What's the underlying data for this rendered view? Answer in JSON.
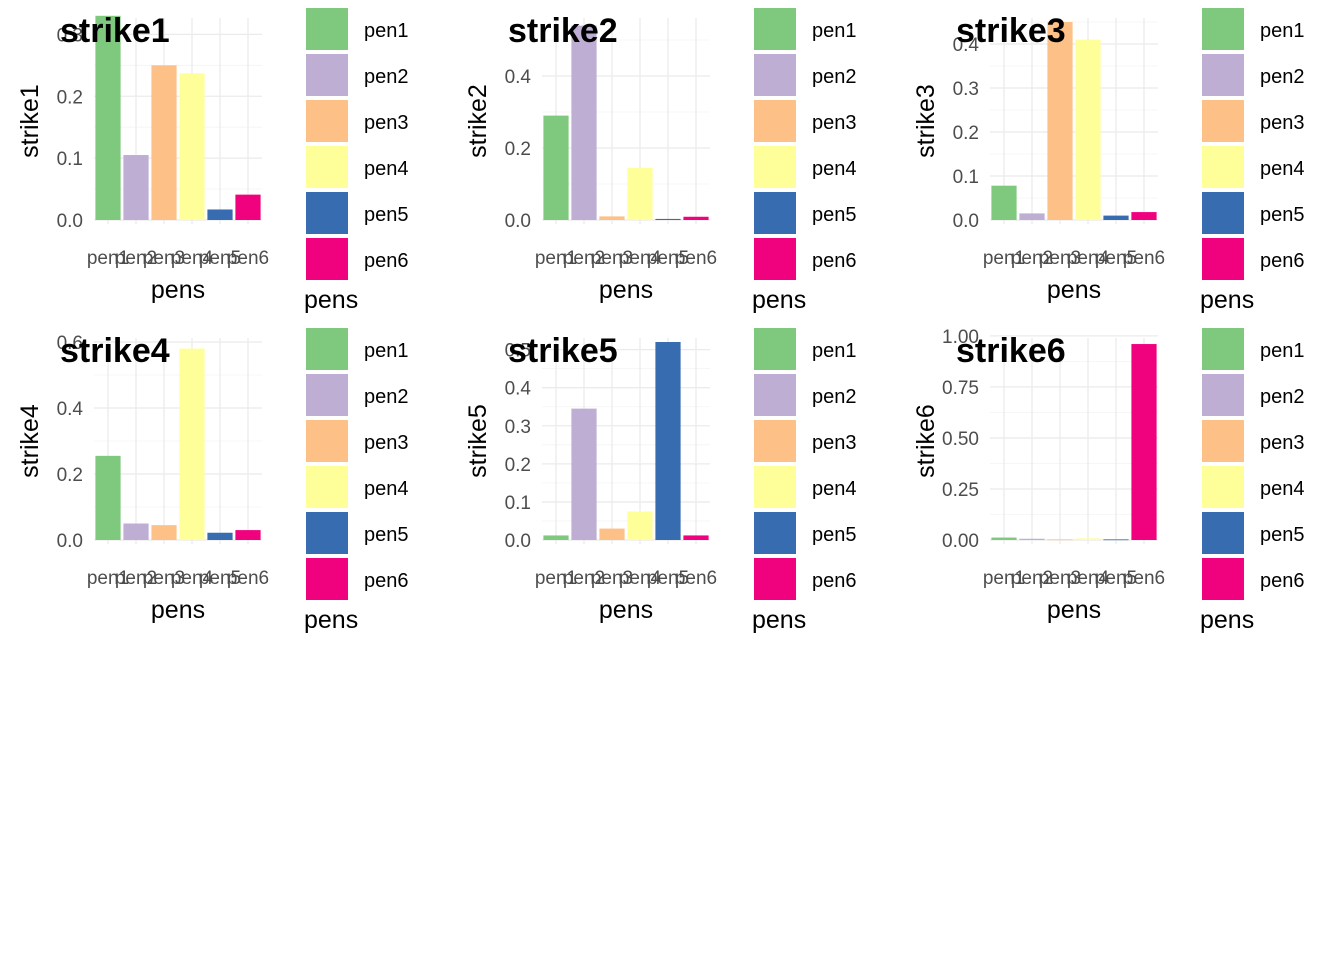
{
  "chart_data": [
    {
      "type": "bar",
      "tag": "strike1",
      "categories": [
        "pen1",
        "pen2",
        "pen3",
        "pen4",
        "pen5",
        "pen6"
      ],
      "values": [
        0.33,
        0.105,
        0.25,
        0.237,
        0.017,
        0.041
      ],
      "xlabel": "pens",
      "ylabel": "strike1",
      "ylim": [
        0,
        0.32
      ],
      "yticks": [
        0.0,
        0.1,
        0.2,
        0.3
      ],
      "ytick_labels": [
        "0.0",
        "0.1",
        "0.2",
        "0.3"
      ],
      "legend": {
        "title": "pens",
        "placement": "right",
        "entries": [
          "pen1",
          "pen2",
          "pen3",
          "pen4",
          "pen5",
          "pen6"
        ]
      }
    },
    {
      "type": "bar",
      "tag": "strike2",
      "categories": [
        "pen1",
        "pen2",
        "pen3",
        "pen4",
        "pen5",
        "pen6"
      ],
      "values": [
        0.29,
        0.54,
        0.01,
        0.145,
        0.003,
        0.009
      ],
      "xlabel": "pens",
      "ylabel": "strike2",
      "ylim": [
        0,
        0.55
      ],
      "yticks": [
        0.0,
        0.2,
        0.4
      ],
      "ytick_labels": [
        "0.0",
        "0.2",
        "0.4"
      ],
      "legend": {
        "title": "pens",
        "placement": "right",
        "entries": [
          "pen1",
          "pen2",
          "pen3",
          "pen4",
          "pen5",
          "pen6"
        ]
      }
    },
    {
      "type": "bar",
      "tag": "strike3",
      "categories": [
        "pen1",
        "pen2",
        "pen3",
        "pen4",
        "pen5",
        "pen6"
      ],
      "values": [
        0.078,
        0.015,
        0.45,
        0.41,
        0.01,
        0.018
      ],
      "xlabel": "pens",
      "ylabel": "strike3",
      "ylim": [
        0,
        0.45
      ],
      "yticks": [
        0.0,
        0.1,
        0.2,
        0.3,
        0.4
      ],
      "ytick_labels": [
        "0.0",
        "0.1",
        "0.2",
        "0.3",
        "0.4"
      ],
      "legend": {
        "title": "pens",
        "placement": "right",
        "entries": [
          "pen1",
          "pen2",
          "pen3",
          "pen4",
          "pen5",
          "pen6"
        ]
      }
    },
    {
      "type": "bar",
      "tag": "strike4",
      "categories": [
        "pen1",
        "pen2",
        "pen3",
        "pen4",
        "pen5",
        "pen6"
      ],
      "values": [
        0.255,
        0.05,
        0.045,
        0.58,
        0.022,
        0.03
      ],
      "xlabel": "pens",
      "ylabel": "strike4",
      "ylim": [
        0,
        0.6
      ],
      "yticks": [
        0.0,
        0.2,
        0.4,
        0.6
      ],
      "ytick_labels": [
        "0.0",
        "0.2",
        "0.4",
        "0.6"
      ],
      "legend": {
        "title": "pens",
        "placement": "right",
        "entries": [
          "pen1",
          "pen2",
          "pen3",
          "pen4",
          "pen5",
          "pen6"
        ]
      }
    },
    {
      "type": "bar",
      "tag": "strike5",
      "categories": [
        "pen1",
        "pen2",
        "pen3",
        "pen4",
        "pen5",
        "pen6"
      ],
      "values": [
        0.012,
        0.345,
        0.03,
        0.075,
        0.52,
        0.012
      ],
      "xlabel": "pens",
      "ylabel": "strike5",
      "ylim": [
        0,
        0.52
      ],
      "yticks": [
        0.0,
        0.1,
        0.2,
        0.3,
        0.4,
        0.5
      ],
      "ytick_labels": [
        "0.0",
        "0.1",
        "0.2",
        "0.3",
        "0.4",
        "0.5"
      ],
      "legend": {
        "title": "pens",
        "placement": "right",
        "entries": [
          "pen1",
          "pen2",
          "pen3",
          "pen4",
          "pen5",
          "pen6"
        ]
      }
    },
    {
      "type": "bar",
      "tag": "strike6",
      "categories": [
        "pen1",
        "pen2",
        "pen3",
        "pen4",
        "pen5",
        "pen6"
      ],
      "values": [
        0.012,
        0.006,
        0.003,
        0.008,
        0.003,
        0.96
      ],
      "xlabel": "pens",
      "ylabel": "strike6",
      "ylim": [
        0,
        0.97
      ],
      "yticks": [
        0.0,
        0.25,
        0.5,
        0.75,
        1.0
      ],
      "ytick_labels": [
        "0.00",
        "0.25",
        "0.50",
        "0.75",
        "1.00"
      ],
      "legend": {
        "title": "pens",
        "placement": "right",
        "entries": [
          "pen1",
          "pen2",
          "pen3",
          "pen4",
          "pen5",
          "pen6"
        ]
      }
    }
  ],
  "colors": {
    "pen1": "#7FC97F",
    "pen2": "#BEAED4",
    "pen3": "#FDC086",
    "pen4": "#FFFF99",
    "pen5": "#386CB0",
    "pen6": "#F0027F"
  }
}
